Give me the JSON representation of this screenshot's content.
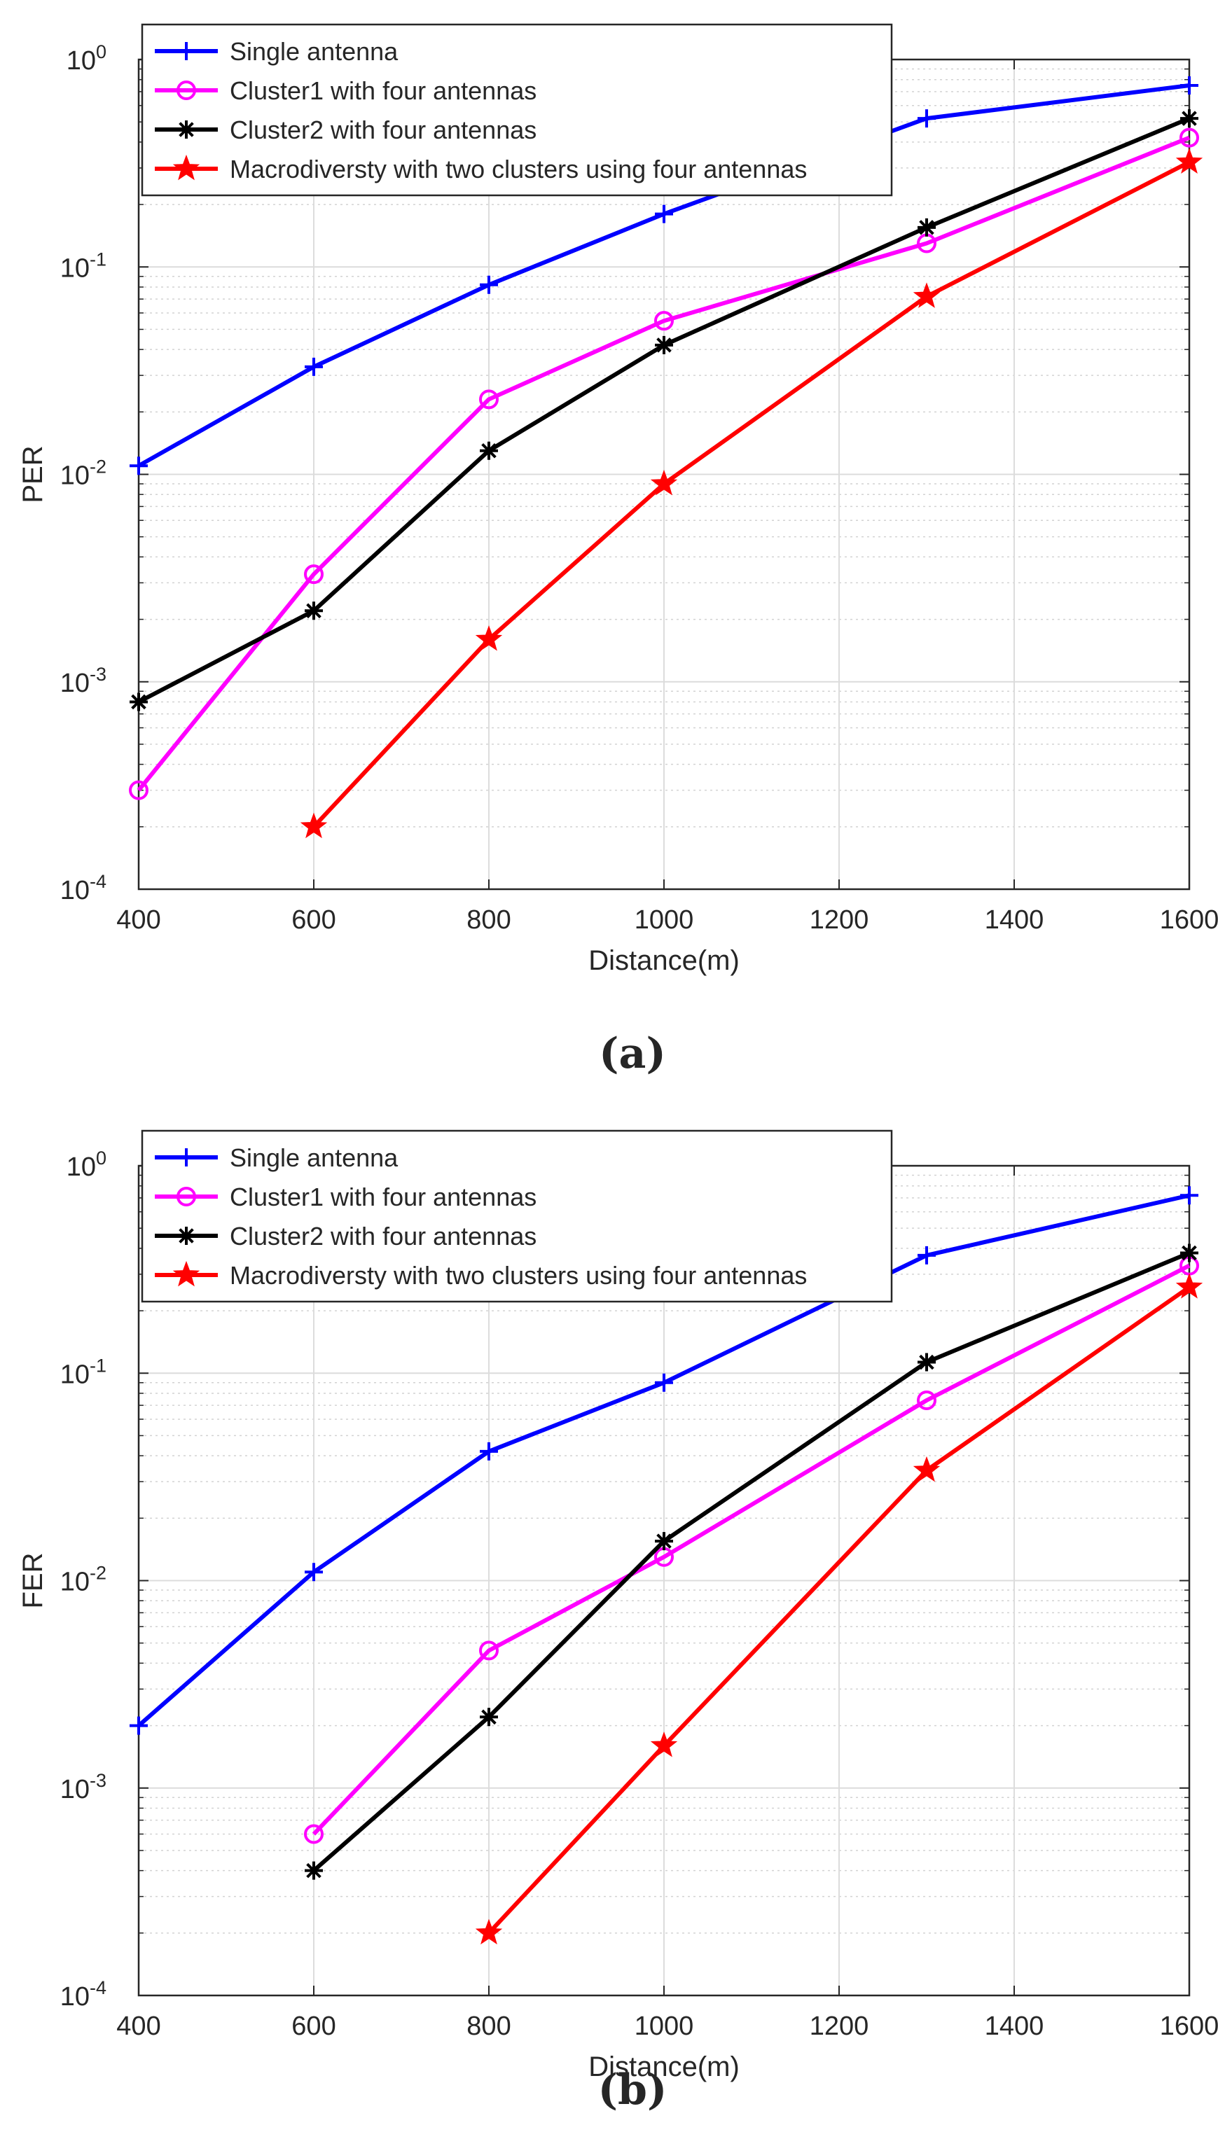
{
  "chart_data": [
    {
      "type": "line",
      "panel_label": "(a)",
      "xlabel": "Distance(m)",
      "ylabel": "PER",
      "yscale": "log",
      "xlim": [
        400,
        1600
      ],
      "ylim": [
        0.0001,
        1
      ],
      "x_ticks": [
        "400",
        "600",
        "800",
        "1000",
        "1200",
        "1400",
        "1600"
      ],
      "y_ticks": [
        {
          "base": "10",
          "exp": "0"
        },
        {
          "base": "10",
          "exp": "-1"
        },
        {
          "base": "10",
          "exp": "-2"
        },
        {
          "base": "10",
          "exp": "-3"
        },
        {
          "base": "10",
          "exp": "-4"
        }
      ],
      "legend_position": "top-left",
      "grid": true,
      "series": [
        {
          "name": "Single antenna",
          "color": "#0000ff",
          "marker": "plus",
          "x": [
            400,
            600,
            800,
            1000,
            1300,
            1600
          ],
          "y": [
            0.011,
            0.033,
            0.082,
            0.18,
            0.52,
            0.75
          ]
        },
        {
          "name": "Cluster1 with four antennas",
          "color": "#ff00ff",
          "marker": "circle",
          "x": [
            400,
            600,
            800,
            1000,
            1300,
            1600
          ],
          "y": [
            0.0003,
            0.0033,
            0.023,
            0.055,
            0.13,
            0.42
          ]
        },
        {
          "name": "Cluster2 with four antennas",
          "color": "#000000",
          "marker": "asterisk",
          "x": [
            400,
            600,
            800,
            1000,
            1300,
            1600
          ],
          "y": [
            0.0008,
            0.0022,
            0.013,
            0.042,
            0.155,
            0.52
          ]
        },
        {
          "name": "Macrodiversty with two clusters using four antennas",
          "color": "#ff0000",
          "marker": "star",
          "x": [
            600,
            800,
            1000,
            1300,
            1600
          ],
          "y": [
            0.0002,
            0.0016,
            0.009,
            0.072,
            0.32
          ]
        }
      ]
    },
    {
      "type": "line",
      "panel_label": "(b)",
      "xlabel": "Distance(m)",
      "ylabel": "FER",
      "yscale": "log",
      "xlim": [
        400,
        1600
      ],
      "ylim": [
        0.0001,
        1
      ],
      "x_ticks": [
        "400",
        "600",
        "800",
        "1000",
        "1200",
        "1400",
        "1600"
      ],
      "y_ticks": [
        {
          "base": "10",
          "exp": "0"
        },
        {
          "base": "10",
          "exp": "-1"
        },
        {
          "base": "10",
          "exp": "-2"
        },
        {
          "base": "10",
          "exp": "-3"
        },
        {
          "base": "10",
          "exp": "-4"
        }
      ],
      "legend_position": "top-left",
      "grid": true,
      "series": [
        {
          "name": "Single antenna",
          "color": "#0000ff",
          "marker": "plus",
          "x": [
            400,
            600,
            800,
            1000,
            1300,
            1600
          ],
          "y": [
            0.002,
            0.011,
            0.042,
            0.09,
            0.37,
            0.72
          ]
        },
        {
          "name": "Cluster1 with four antennas",
          "color": "#ff00ff",
          "marker": "circle",
          "x": [
            600,
            800,
            1000,
            1300,
            1600
          ],
          "y": [
            0.0006,
            0.0046,
            0.013,
            0.074,
            0.33
          ]
        },
        {
          "name": "Cluster2 with four antennas",
          "color": "#000000",
          "marker": "asterisk",
          "x": [
            600,
            800,
            1000,
            1300,
            1600
          ],
          "y": [
            0.0004,
            0.0022,
            0.0155,
            0.113,
            0.38
          ]
        },
        {
          "name": "Macrodiversty with two clusters using four antennas",
          "color": "#ff0000",
          "marker": "star",
          "x": [
            800,
            1000,
            1300,
            1600
          ],
          "y": [
            0.0002,
            0.0016,
            0.034,
            0.26
          ]
        }
      ]
    }
  ]
}
